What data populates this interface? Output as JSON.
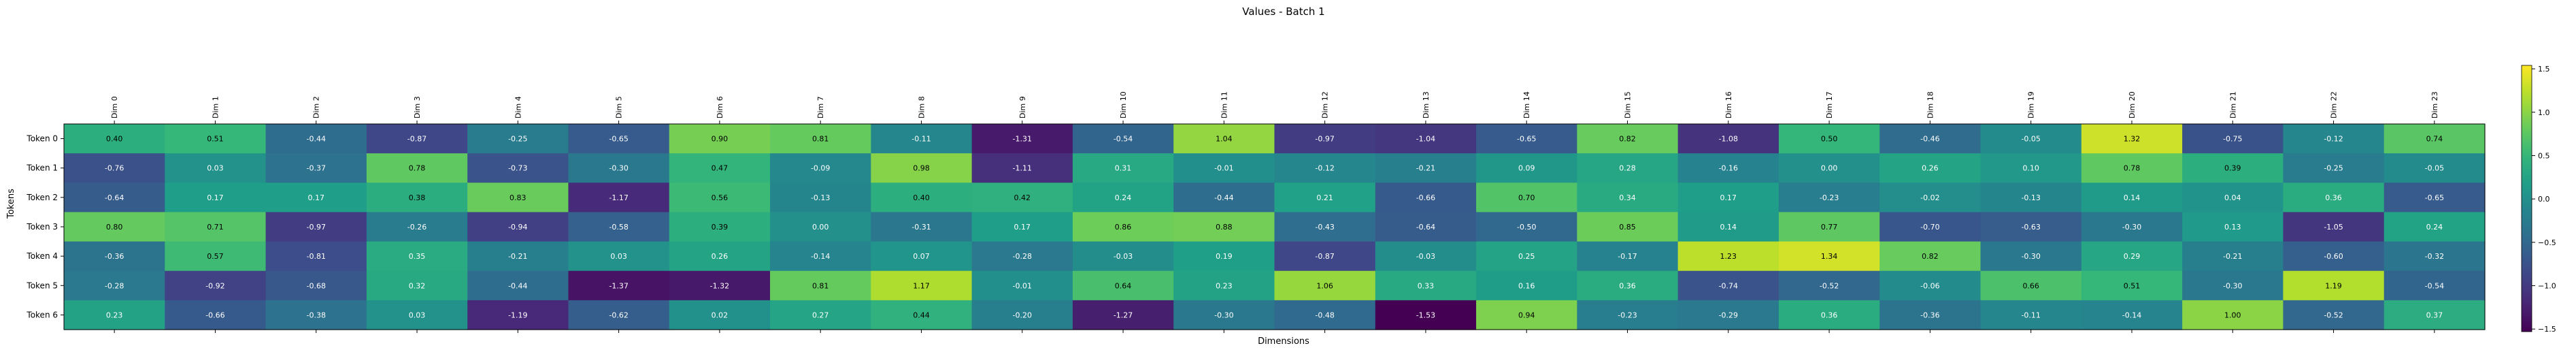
{
  "chart_data": {
    "type": "heatmap",
    "title": "Values - Batch 1",
    "xlabel": "Dimensions",
    "ylabel": "Tokens",
    "columns": [
      "Dim 0",
      "Dim 1",
      "Dim 2",
      "Dim 3",
      "Dim 4",
      "Dim 5",
      "Dim 6",
      "Dim 7",
      "Dim 8",
      "Dim 9",
      "Dim 10",
      "Dim 11",
      "Dim 12",
      "Dim 13",
      "Dim 14",
      "Dim 15",
      "Dim 16",
      "Dim 17",
      "Dim 18",
      "Dim 19",
      "Dim 20",
      "Dim 21",
      "Dim 22",
      "Dim 23"
    ],
    "rows": [
      "Token 0",
      "Token 1",
      "Token 2",
      "Token 3",
      "Token 4",
      "Token 5",
      "Token 6"
    ],
    "values": [
      [
        0.4,
        0.51,
        -0.44,
        -0.87,
        -0.25,
        -0.65,
        0.9,
        0.81,
        -0.11,
        -1.31,
        -0.54,
        1.04,
        -0.97,
        -1.04,
        -0.65,
        0.82,
        -1.08,
        0.5,
        -0.46,
        -0.05,
        1.32,
        -0.75,
        -0.12,
        0.74
      ],
      [
        -0.76,
        0.03,
        -0.37,
        0.78,
        -0.73,
        -0.3,
        0.47,
        -0.09,
        0.98,
        -1.11,
        0.31,
        -0.01,
        -0.12,
        -0.21,
        0.09,
        0.28,
        -0.16,
        0.0,
        0.26,
        0.1,
        0.78,
        0.39,
        -0.25,
        -0.05
      ],
      [
        -0.64,
        0.17,
        0.17,
        0.38,
        0.83,
        -1.17,
        0.56,
        -0.13,
        0.4,
        0.42,
        0.24,
        -0.44,
        0.21,
        -0.66,
        0.7,
        0.34,
        0.17,
        -0.23,
        -0.02,
        -0.13,
        0.14,
        0.04,
        0.36,
        -0.65
      ],
      [
        0.8,
        0.71,
        -0.97,
        -0.26,
        -0.94,
        -0.58,
        0.39,
        0.0,
        -0.31,
        0.17,
        0.86,
        0.88,
        -0.43,
        -0.64,
        -0.5,
        0.85,
        0.14,
        0.77,
        -0.7,
        -0.63,
        -0.3,
        0.13,
        -1.05,
        0.24
      ],
      [
        -0.36,
        0.57,
        -0.81,
        0.35,
        -0.21,
        0.03,
        0.26,
        -0.14,
        0.07,
        -0.28,
        -0.03,
        0.19,
        -0.87,
        -0.03,
        0.25,
        -0.17,
        1.23,
        1.34,
        0.82,
        -0.3,
        0.29,
        -0.21,
        -0.6,
        -0.32
      ],
      [
        -0.28,
        -0.92,
        -0.68,
        0.32,
        -0.44,
        -1.37,
        -1.32,
        0.81,
        1.17,
        -0.01,
        0.64,
        0.23,
        1.06,
        0.33,
        0.16,
        0.36,
        -0.74,
        -0.52,
        -0.06,
        0.66,
        0.51,
        -0.3,
        1.19,
        -0.54
      ],
      [
        0.23,
        -0.66,
        -0.38,
        0.03,
        -1.19,
        -0.62,
        0.02,
        0.27,
        0.44,
        -0.2,
        -1.27,
        -0.3,
        -0.48,
        -1.53,
        0.94,
        -0.23,
        -0.29,
        0.36,
        -0.36,
        -0.11,
        -0.14,
        1.0,
        -0.52,
        0.37
      ]
    ],
    "vmin": -1.53,
    "vmax": 1.54,
    "colormap": "viridis",
    "colorbar_ticks": [
      -1.5,
      -1.0,
      -0.5,
      0.0,
      0.5,
      1.0,
      1.5
    ],
    "colorbar_tick_labels": [
      "−1.5",
      "−1.0",
      "−0.5",
      "0.0",
      "0.5",
      "1.0",
      "1.5"
    ],
    "grid": false
  }
}
